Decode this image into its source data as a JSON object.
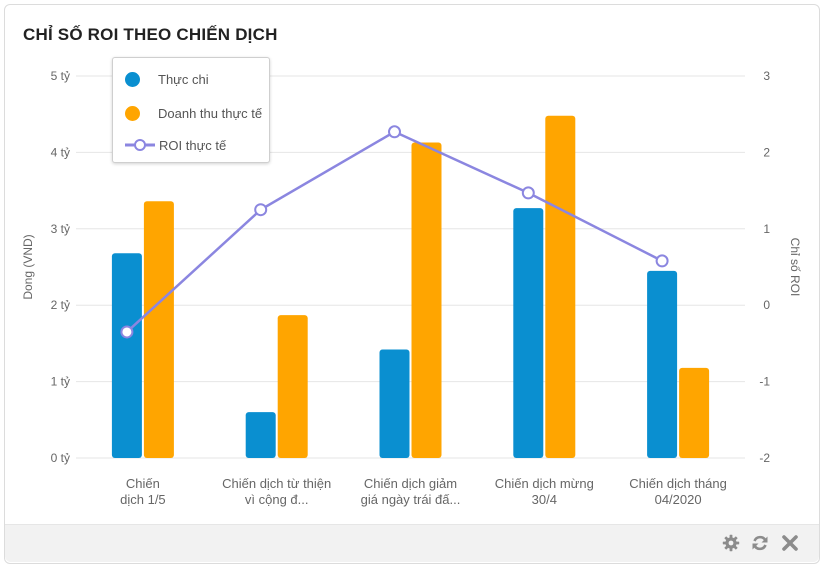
{
  "title": "CHỈ SỐ ROI THEO CHIẾN DỊCH",
  "colors": {
    "thuc_chi": "#0a8fd0",
    "doanh_thu": "#ffa500",
    "roi": "#8b86e0",
    "grid": "#e6e6e6",
    "axis_text": "#666666"
  },
  "chart_data": {
    "type": "bar",
    "categories": [
      [
        "Chiến",
        "dịch 1/5"
      ],
      [
        "Chiến dịch từ thiện",
        "vì cộng đ..."
      ],
      [
        "Chiến dịch giảm",
        "giá ngày trái đấ..."
      ],
      [
        "Chiến dịch mừng",
        "30/4"
      ],
      [
        "Chiến dịch tháng",
        "04/2020"
      ]
    ],
    "series": [
      {
        "name": "Thực chi",
        "axis": "left",
        "type": "bar",
        "color": "#0a8fd0",
        "values": [
          2.68,
          0.6,
          1.42,
          3.27,
          2.45
        ]
      },
      {
        "name": "Doanh thu thực tế",
        "axis": "left",
        "type": "bar",
        "color": "#ffa500",
        "values": [
          3.36,
          1.87,
          4.13,
          4.48,
          1.18
        ]
      },
      {
        "name": "ROI thực tế",
        "axis": "right",
        "type": "line",
        "color": "#8b86e0",
        "values": [
          -0.35,
          1.25,
          2.27,
          1.47,
          0.58
        ]
      }
    ],
    "ylabel": "Dong (VND)",
    "y2label": "Chỉ số ROI",
    "ylim": [
      0,
      5
    ],
    "y2lim": [
      -2,
      3
    ],
    "yticks": [
      "0 tỷ",
      "1 tỷ",
      "2 tỷ",
      "3 tỷ",
      "4 tỷ",
      "5 tỷ"
    ],
    "y2ticks": [
      "-2",
      "-1",
      "0",
      "1",
      "2",
      "3"
    ],
    "grid": true,
    "legend_position": "top-left"
  },
  "legend": {
    "thuc_chi": "Thực chi",
    "doanh_thu": "Doanh thu thực tế",
    "roi": "ROI thực tế"
  },
  "toolbar": {
    "icons": [
      "gear-icon",
      "refresh-icon",
      "close-icon"
    ]
  }
}
